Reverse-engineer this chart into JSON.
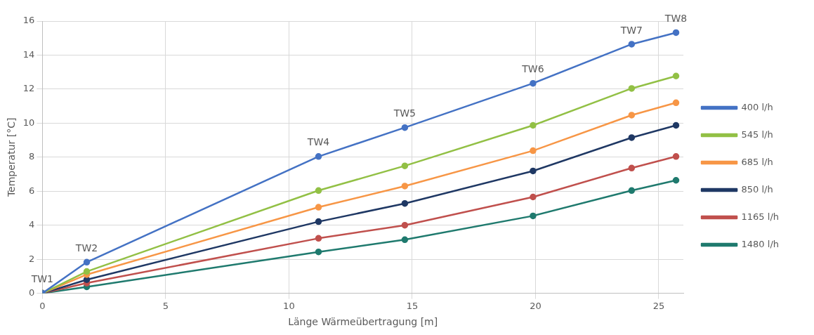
{
  "chart_data": {
    "type": "line",
    "xlabel": "Länge Wärmeübertragung [m]",
    "ylabel": "Temperatur [°C]",
    "x": [
      0,
      1.8,
      11.2,
      14.7,
      19.9,
      23.9,
      25.7
    ],
    "series": [
      {
        "name": "400 l/h",
        "color": "#4472c4",
        "values": [
          0,
          1.83,
          8.04,
          9.74,
          12.34,
          14.64,
          15.32
        ]
      },
      {
        "name": "545 l/h",
        "color": "#92c045",
        "values": [
          0,
          1.28,
          6.04,
          7.49,
          9.87,
          12.04,
          12.77
        ]
      },
      {
        "name": "685 l/h",
        "color": "#f79646",
        "values": [
          0,
          1.1,
          5.06,
          6.3,
          8.38,
          10.47,
          11.2
        ]
      },
      {
        "name": "850 l/h",
        "color": "#1f3864",
        "values": [
          0,
          0.8,
          4.21,
          5.28,
          7.19,
          9.15,
          9.87
        ]
      },
      {
        "name": "1165 l/h",
        "color": "#c0504d",
        "values": [
          0,
          0.6,
          3.23,
          4.0,
          5.66,
          7.36,
          8.04
        ]
      },
      {
        "name": "1480 l/h",
        "color": "#1f7a6e",
        "values": [
          0,
          0.38,
          2.43,
          3.15,
          4.55,
          6.04,
          6.64
        ]
      }
    ],
    "xlim": [
      0,
      26
    ],
    "xticks": [
      0,
      5,
      10,
      15,
      20,
      25
    ],
    "ylim": [
      0,
      16
    ],
    "yticks": [
      0,
      2,
      4,
      6,
      8,
      10,
      12,
      14,
      16
    ],
    "annotations": [
      {
        "text": "TW1",
        "x": 0,
        "y": 0
      },
      {
        "text": "TW2",
        "x": 1.8,
        "y": 1.83
      },
      {
        "text": "TW4",
        "x": 11.2,
        "y": 8.04
      },
      {
        "text": "TW5",
        "x": 14.7,
        "y": 9.74
      },
      {
        "text": "TW6",
        "x": 19.9,
        "y": 12.34
      },
      {
        "text": "TW7",
        "x": 23.9,
        "y": 14.64
      },
      {
        "text": "TW8",
        "x": 25.7,
        "y": 15.32
      }
    ],
    "grid": true,
    "legend": "right",
    "marker": "circle",
    "line_style": "solid"
  }
}
